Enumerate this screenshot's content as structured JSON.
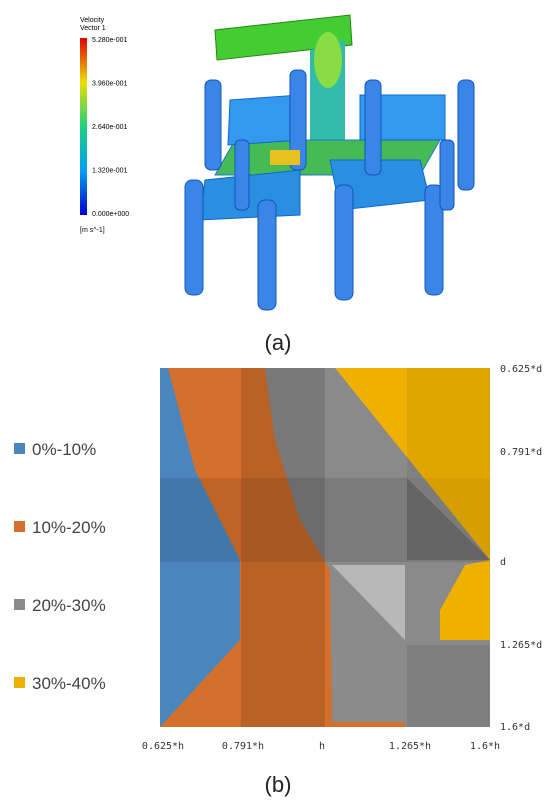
{
  "panel_a": {
    "legend_title": "Velocity",
    "legend_subtitle": "Vector 1",
    "scale_labels": [
      "5.280e-001",
      "3.960e-001",
      "2.640e-001",
      "1.320e-001",
      "0.000e+000"
    ],
    "unit": "[m s^-1]",
    "caption": "(a)"
  },
  "panel_b": {
    "legend": [
      "0%-10%",
      "10%-20%",
      "20%-30%",
      "30%-40%"
    ],
    "x_labels": [
      "0.625*h",
      "0.791*h",
      "h",
      "1.265*h",
      "1.6*h"
    ],
    "y_labels": [
      "0.625*d",
      "0.791*d",
      "d",
      "1.265*d",
      "1.6*d"
    ],
    "caption": "(b)"
  }
}
